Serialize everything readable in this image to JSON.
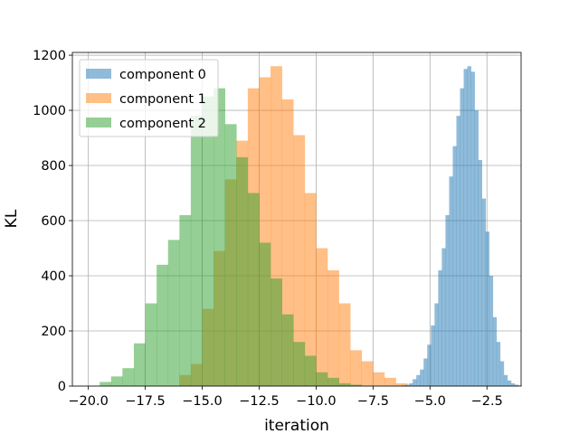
{
  "chart_data": {
    "type": "bar",
    "subtype": "histogram-overlay",
    "xlabel": "iteration",
    "ylabel": "KL",
    "xlim": [
      -20.7,
      -1.0
    ],
    "ylim": [
      0,
      1210
    ],
    "xticks": [
      -20.0,
      -17.5,
      -15.0,
      -12.5,
      -10.0,
      -7.5,
      -5.0,
      -2.5
    ],
    "xtick_labels": [
      "−20.0",
      "−17.5",
      "−15.0",
      "−12.5",
      "−10.0",
      "−7.5",
      "−5.0",
      "−2.5"
    ],
    "yticks": [
      0,
      200,
      400,
      600,
      800,
      1000,
      1200
    ],
    "ytick_labels": [
      "0",
      "200",
      "400",
      "600",
      "800",
      "1000",
      "1200"
    ],
    "grid": true,
    "legend_position": "top-left",
    "series": [
      {
        "name": "component 0",
        "color": "#1f77b4",
        "opacity": 0.5,
        "bin_start": -6.24,
        "bin_width": 0.16,
        "values": [
          3,
          5,
          10,
          25,
          40,
          60,
          100,
          150,
          220,
          300,
          420,
          500,
          620,
          760,
          870,
          980,
          1080,
          1150,
          1160,
          1140,
          1000,
          820,
          680,
          560,
          400,
          250,
          160,
          90,
          40,
          20,
          10,
          5,
          2
        ]
      },
      {
        "name": "component 1",
        "color": "#ff7f0e",
        "opacity": 0.5,
        "bin_start": -16.0,
        "bin_width": 0.5,
        "values": [
          40,
          80,
          280,
          490,
          750,
          890,
          1080,
          1120,
          1160,
          1040,
          910,
          700,
          500,
          420,
          300,
          130,
          90,
          50,
          30,
          10
        ]
      },
      {
        "name": "component 2",
        "color": "#2ca02c",
        "opacity": 0.5,
        "bin_start": -19.5,
        "bin_width": 0.5,
        "values": [
          15,
          35,
          65,
          155,
          300,
          440,
          530,
          620,
          980,
          1050,
          1080,
          950,
          830,
          700,
          520,
          390,
          260,
          160,
          110,
          50,
          30,
          10,
          5
        ]
      }
    ]
  }
}
